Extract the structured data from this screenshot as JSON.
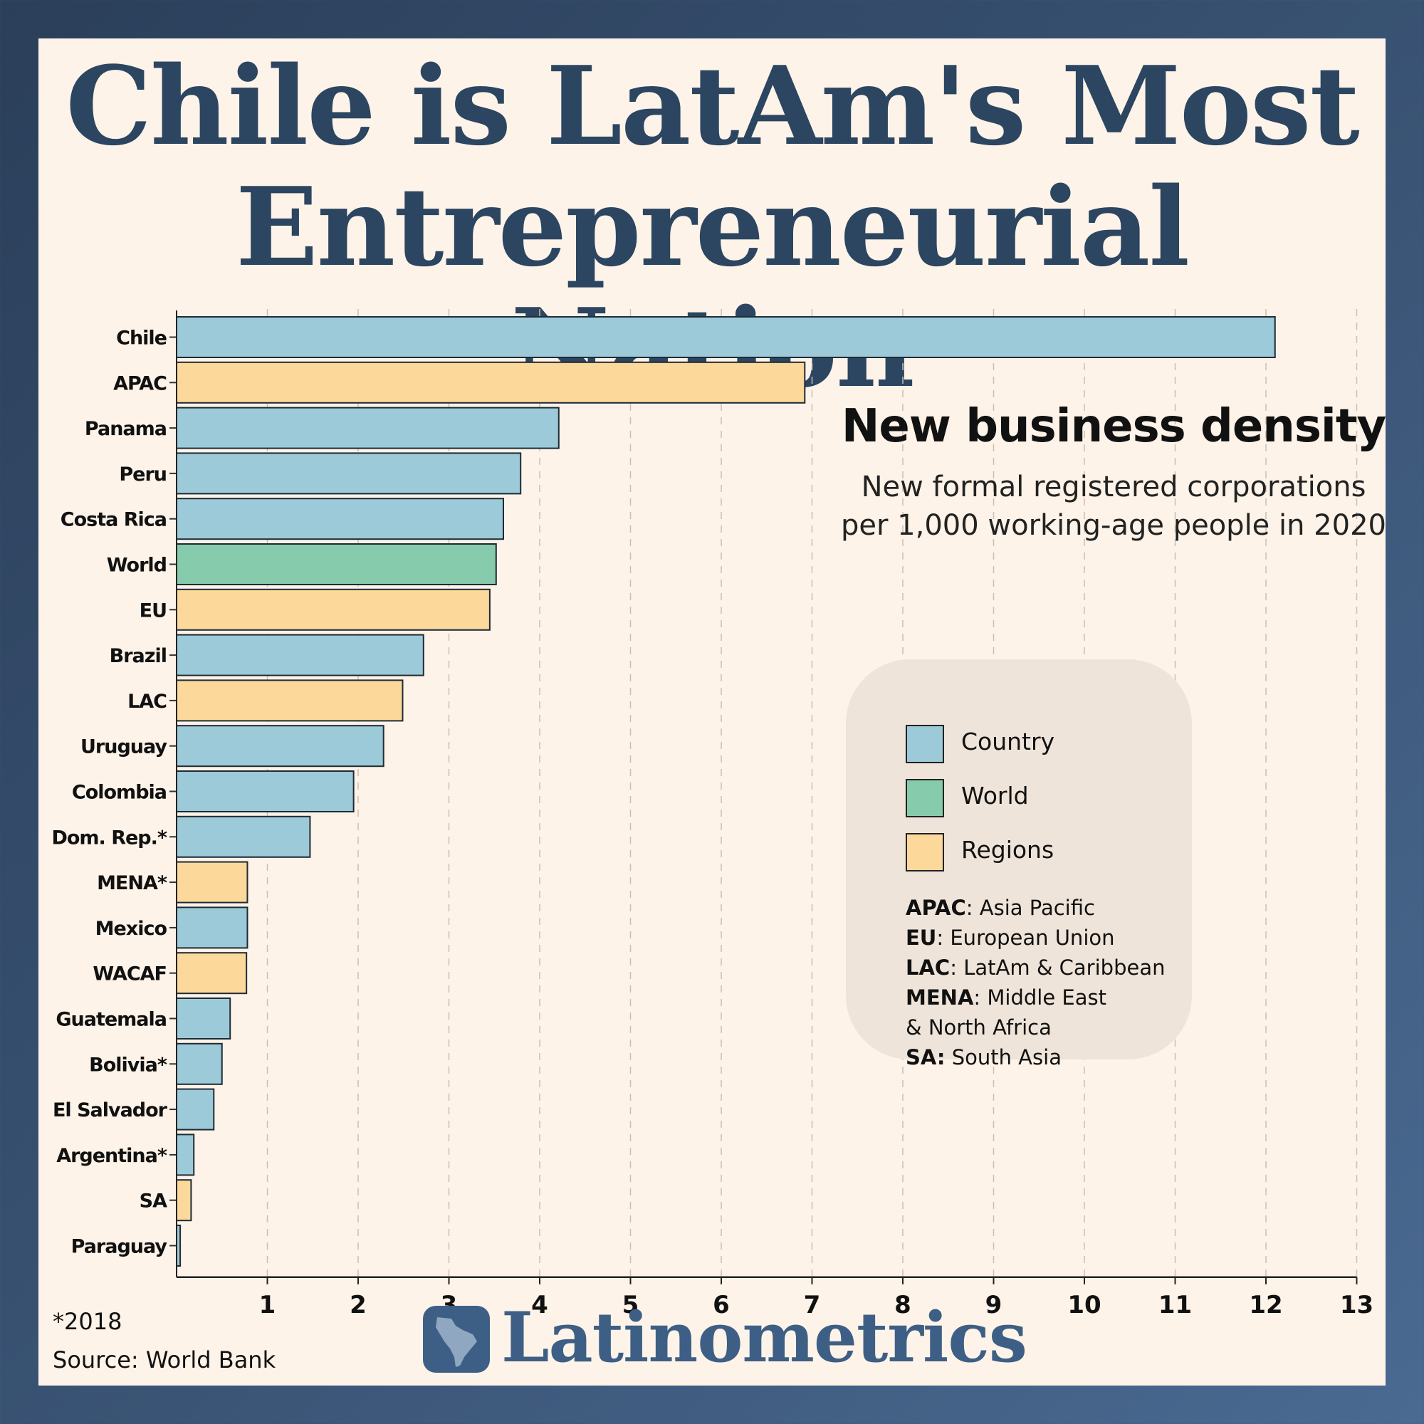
{
  "header": {
    "title_line1": "Chile is LatAm's Most",
    "title_line2": "Entrepreneurial Nation"
  },
  "annotation": {
    "title": "New business density",
    "description_line1": "New formal registered corporations",
    "description_line2": "per 1,000 working-age people in 2020"
  },
  "legend": {
    "items": [
      {
        "label": "Country",
        "color": "#9ccad8"
      },
      {
        "label": "World",
        "color": "#86ccac"
      },
      {
        "label": "Regions",
        "color": "#fcd89b"
      }
    ],
    "abbreviations": [
      {
        "abbr": "APAC",
        "sep": ": ",
        "text": "Asia Pacific"
      },
      {
        "abbr": "EU",
        "sep": ": ",
        "text": "European Union"
      },
      {
        "abbr": "LAC",
        "sep": ": ",
        "text": "LatAm & Caribbean"
      },
      {
        "abbr": "MENA",
        "sep": ": ",
        "text": "Middle East"
      },
      {
        "abbr": "",
        "sep": "",
        "text": "& North Africa"
      },
      {
        "abbr": "SA:",
        "sep": " ",
        "text": "South Asia"
      }
    ]
  },
  "footer": {
    "footnote": "*2018",
    "source": "Source: World Bank",
    "brand": "Latinometrics"
  },
  "chart_data": {
    "type": "bar",
    "orientation": "horizontal",
    "title": "New business density",
    "subtitle": "New formal registered corporations per 1,000 working-age people in 2020",
    "xlim": [
      0,
      13
    ],
    "xticks": [
      1,
      2,
      3,
      4,
      5,
      6,
      7,
      8,
      9,
      10,
      11,
      12,
      13
    ],
    "grid": "vertical dashed",
    "legend_position": "right",
    "categories": [
      "Chile",
      "APAC",
      "Panama",
      "Peru",
      "Costa Rica",
      "World",
      "EU",
      "Brazil",
      "LAC",
      "Uruguay",
      "Colombia",
      "Dom. Rep.*",
      "MENA*",
      "Mexico",
      "WACAF",
      "Guatemala",
      "Bolivia*",
      "El Salvador",
      "Argentina*",
      "SA",
      "Paraguay"
    ],
    "values": [
      12.1,
      6.92,
      4.21,
      3.79,
      3.6,
      3.52,
      3.45,
      2.72,
      2.49,
      2.28,
      1.95,
      1.47,
      0.78,
      0.78,
      0.77,
      0.59,
      0.5,
      0.41,
      0.19,
      0.16,
      0.04
    ],
    "groups": [
      "Country",
      "Regions",
      "Country",
      "Country",
      "Country",
      "World",
      "Regions",
      "Country",
      "Regions",
      "Country",
      "Country",
      "Country",
      "Regions",
      "Country",
      "Regions",
      "Country",
      "Country",
      "Country",
      "Country",
      "Regions",
      "Country"
    ],
    "colors": {
      "Country": "#9ccad8",
      "World": "#86ccac",
      "Regions": "#fcd89b"
    }
  }
}
